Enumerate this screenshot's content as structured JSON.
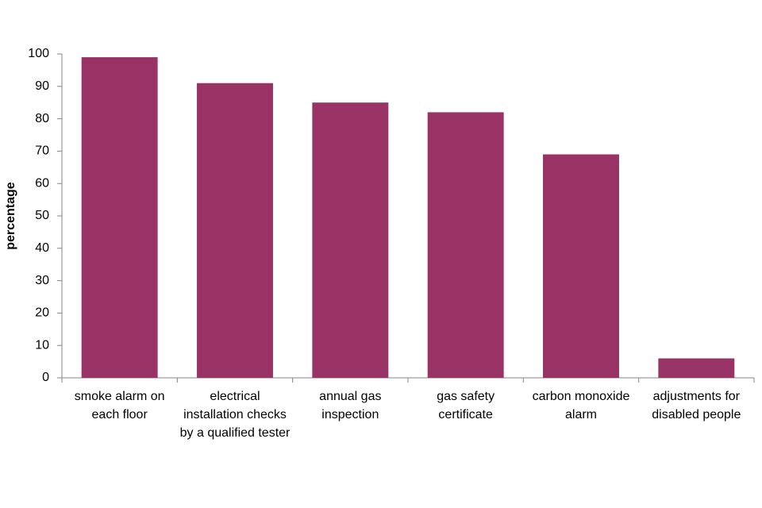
{
  "chart_data": {
    "type": "bar",
    "y_label": "percentage",
    "categories": [
      "smoke alarm on each floor",
      "electrical installation checks by a qualified tester",
      "annual gas inspection",
      "gas safety certificate",
      "carbon monoxide alarm",
      "adjustments for disabled people"
    ],
    "values": [
      99,
      91,
      85,
      82,
      69,
      6
    ],
    "color": "#993366",
    "ylim": [
      0,
      100
    ],
    "yticks": [
      0,
      10,
      20,
      30,
      40,
      50,
      60,
      70,
      80,
      90,
      100
    ],
    "grid": false
  }
}
